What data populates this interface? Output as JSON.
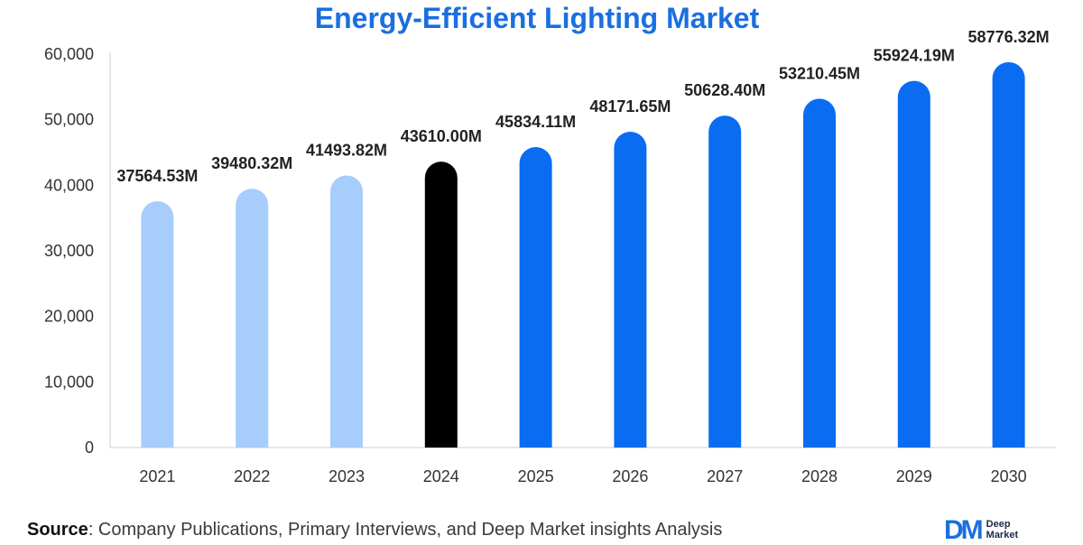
{
  "chart_data": {
    "type": "bar",
    "title": "Energy-Efficient Lighting Market",
    "categories": [
      "2021",
      "2022",
      "2023",
      "2024",
      "2025",
      "2026",
      "2027",
      "2028",
      "2029",
      "2030"
    ],
    "values": [
      37564.53,
      39480.32,
      41493.82,
      43610.0,
      45834.11,
      48171.65,
      50628.4,
      53210.45,
      55924.19,
      58776.32
    ],
    "value_labels": [
      "37564.53M",
      "39480.32M",
      "41493.82M",
      "43610.00M",
      "45834.11M",
      "48171.65M",
      "50628.40M",
      "53210.45M",
      "55924.19M",
      "58776.32M"
    ],
    "ylim": [
      0,
      60000
    ],
    "yticks": [
      "0",
      "10,000",
      "20,000",
      "30,000",
      "40,000",
      "50,000",
      "60,000"
    ],
    "ytick_values": [
      0,
      10000,
      20000,
      30000,
      40000,
      50000,
      60000
    ],
    "grid": false,
    "bar_colors": [
      "#a6cdfb",
      "#a6cdfb",
      "#a6cdfb",
      "#000000",
      "#0a6cf0",
      "#0a6cf0",
      "#0a6cf0",
      "#0a6cf0",
      "#0a6cf0",
      "#0a6cf0"
    ]
  },
  "footer": {
    "source_label": "Source",
    "source_text": ": Company Publications, Primary Interviews, and Deep Market insights Analysis",
    "brand_mark": "DM",
    "brand_line1": "Deep",
    "brand_line2": "Market"
  },
  "colors": {
    "title": "#1a6fe0",
    "axis": "#cccccc"
  }
}
